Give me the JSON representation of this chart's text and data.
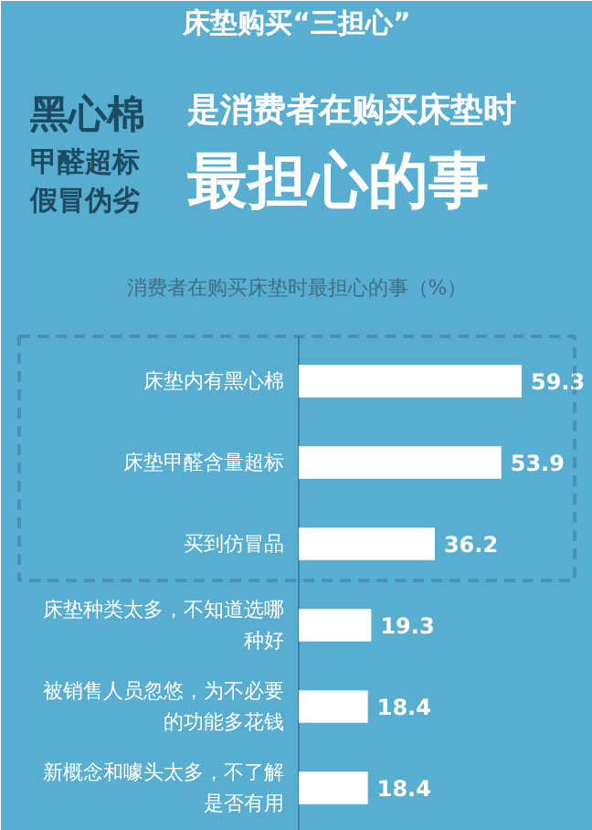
{
  "chart_data": {
    "type": "bar",
    "orientation": "horizontal",
    "title": "床垫购买“三担心”",
    "subtitle": "消费者在购买床垫时最担心的事（%）",
    "annotations": [
      "黑心棉",
      "甲醛超标",
      "假冒伪劣",
      "是消费者在购买床垫时",
      "最担心的事"
    ],
    "categories": [
      "床垫内有黑心棉",
      "床垫甲醛含量超标",
      "买到仿冒品",
      "床垫种类太多，不知道选哪种好",
      "被销售人员忽悠，为不必要的功能多花钱",
      "新概念和噱头太多，不了解是否有用"
    ],
    "values": [
      59.3,
      53.9,
      36.2,
      19.3,
      18.4,
      18.4
    ],
    "color": "#ffffff",
    "data_labels": true,
    "grid": false
  }
}
